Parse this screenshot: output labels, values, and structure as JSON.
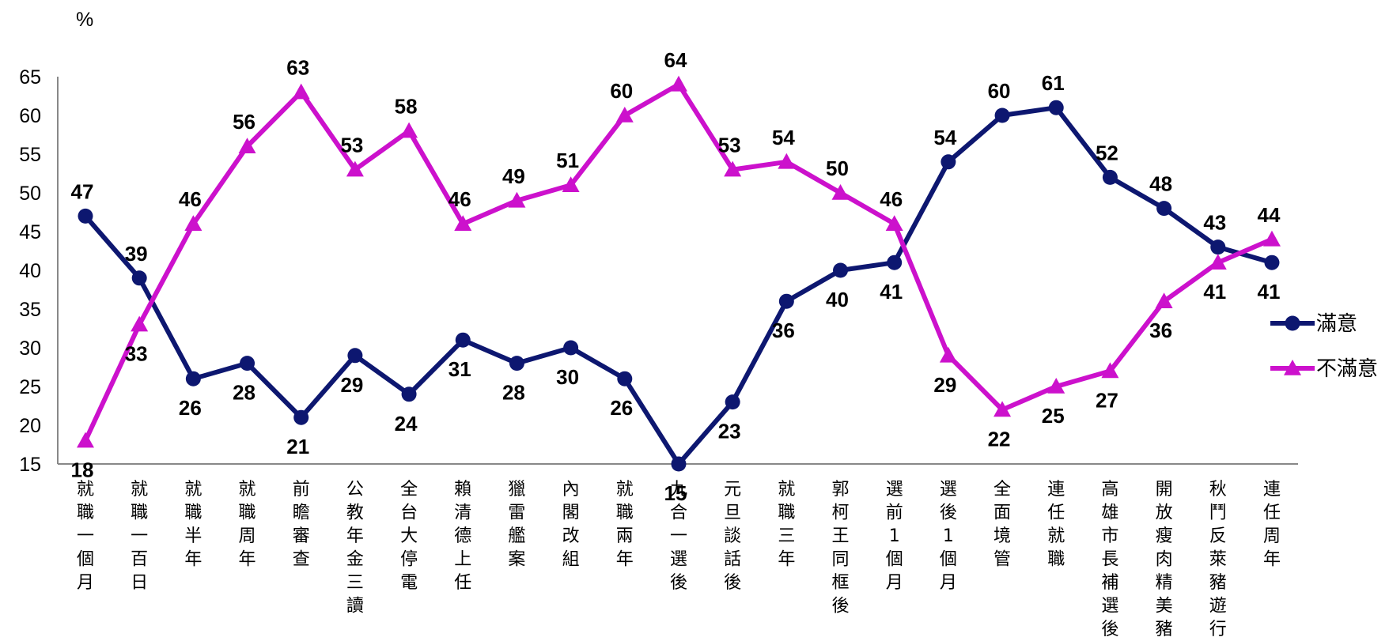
{
  "chart_data": {
    "type": "line",
    "unit_label": "%",
    "ylim": [
      15,
      65
    ],
    "yticks": [
      15,
      20,
      25,
      30,
      35,
      40,
      45,
      50,
      55,
      60,
      65
    ],
    "grid": false,
    "legend_position": "right",
    "categories": [
      "就職一個月",
      "就職一百日",
      "就職半年",
      "就職周年",
      "前瞻審查",
      "公教年金三讀",
      "全台大停電",
      "賴清德上任",
      "獵雷艦案",
      "內閣改組",
      "就職兩年",
      "九合一選後",
      "元旦談話後",
      "就職三年",
      "郭柯王同框後",
      "選前1個月",
      "選後1個月",
      "全面境管",
      "連任就職",
      "高雄市長補選後",
      "開放瘦肉精美豬",
      "秋鬥反萊豬遊行",
      "連任周年"
    ],
    "series": [
      {
        "name": "滿意",
        "color": "#0d1770",
        "marker": "circle",
        "values": [
          47,
          39,
          26,
          28,
          21,
          29,
          24,
          31,
          28,
          30,
          26,
          15,
          23,
          36,
          40,
          41,
          54,
          60,
          61,
          52,
          48,
          43,
          41
        ]
      },
      {
        "name": "不滿意",
        "color": "#cc11cc",
        "marker": "triangle",
        "values": [
          18,
          33,
          46,
          56,
          63,
          53,
          58,
          46,
          49,
          51,
          60,
          64,
          53,
          54,
          50,
          46,
          29,
          22,
          25,
          27,
          36,
          41,
          44
        ]
      }
    ]
  }
}
